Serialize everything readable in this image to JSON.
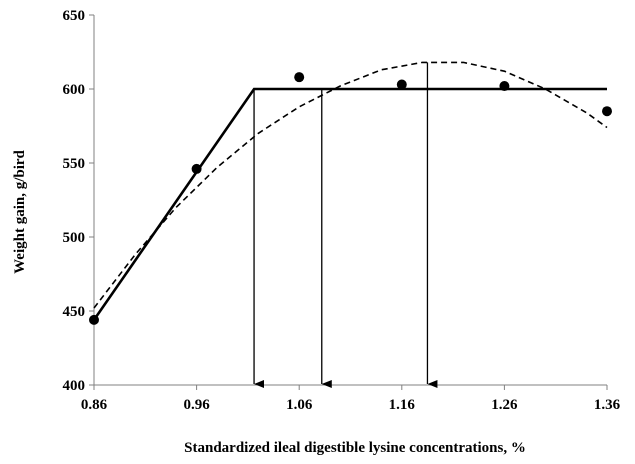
{
  "chart_data": {
    "type": "scatter",
    "title": "",
    "xlabel": "Standardized ileal digestible lysine concentrations, %",
    "ylabel": "Weight gain, g/bird",
    "xlim": [
      0.86,
      1.36
    ],
    "ylim": [
      400,
      650
    ],
    "x_tick_labels": [
      "0.86",
      "0.96",
      "1.06",
      "1.16",
      "1.26",
      "1.36"
    ],
    "y_tick_labels": [
      "400",
      "450",
      "500",
      "550",
      "600",
      "650"
    ],
    "x_ticks": [
      0.86,
      0.96,
      1.06,
      1.16,
      1.26,
      1.36
    ],
    "y_ticks": [
      400,
      450,
      500,
      550,
      600,
      650
    ],
    "grid": false,
    "series": [
      {
        "kind": "points",
        "x": [
          0.86,
          0.96,
          1.06,
          1.16,
          1.26,
          1.36
        ],
        "y": [
          444,
          546,
          608,
          603,
          602,
          585
        ]
      },
      {
        "kind": "broken-line",
        "x": [
          0.86,
          1.016,
          1.36
        ],
        "y": [
          444,
          600,
          600
        ]
      },
      {
        "kind": "quadratic-dashed",
        "x": [
          0.86,
          0.9,
          0.94,
          0.98,
          1.02,
          1.06,
          1.1,
          1.14,
          1.18,
          1.22,
          1.26,
          1.3,
          1.34,
          1.36
        ],
        "y": [
          452,
          488,
          520,
          547,
          570,
          588,
          602,
          613,
          618,
          618,
          612,
          600,
          584,
          574
        ]
      }
    ],
    "arrows": [
      1.016,
      1.082,
      1.185
    ],
    "colors": {
      "axis": "#808080",
      "marks": "#000000"
    }
  }
}
